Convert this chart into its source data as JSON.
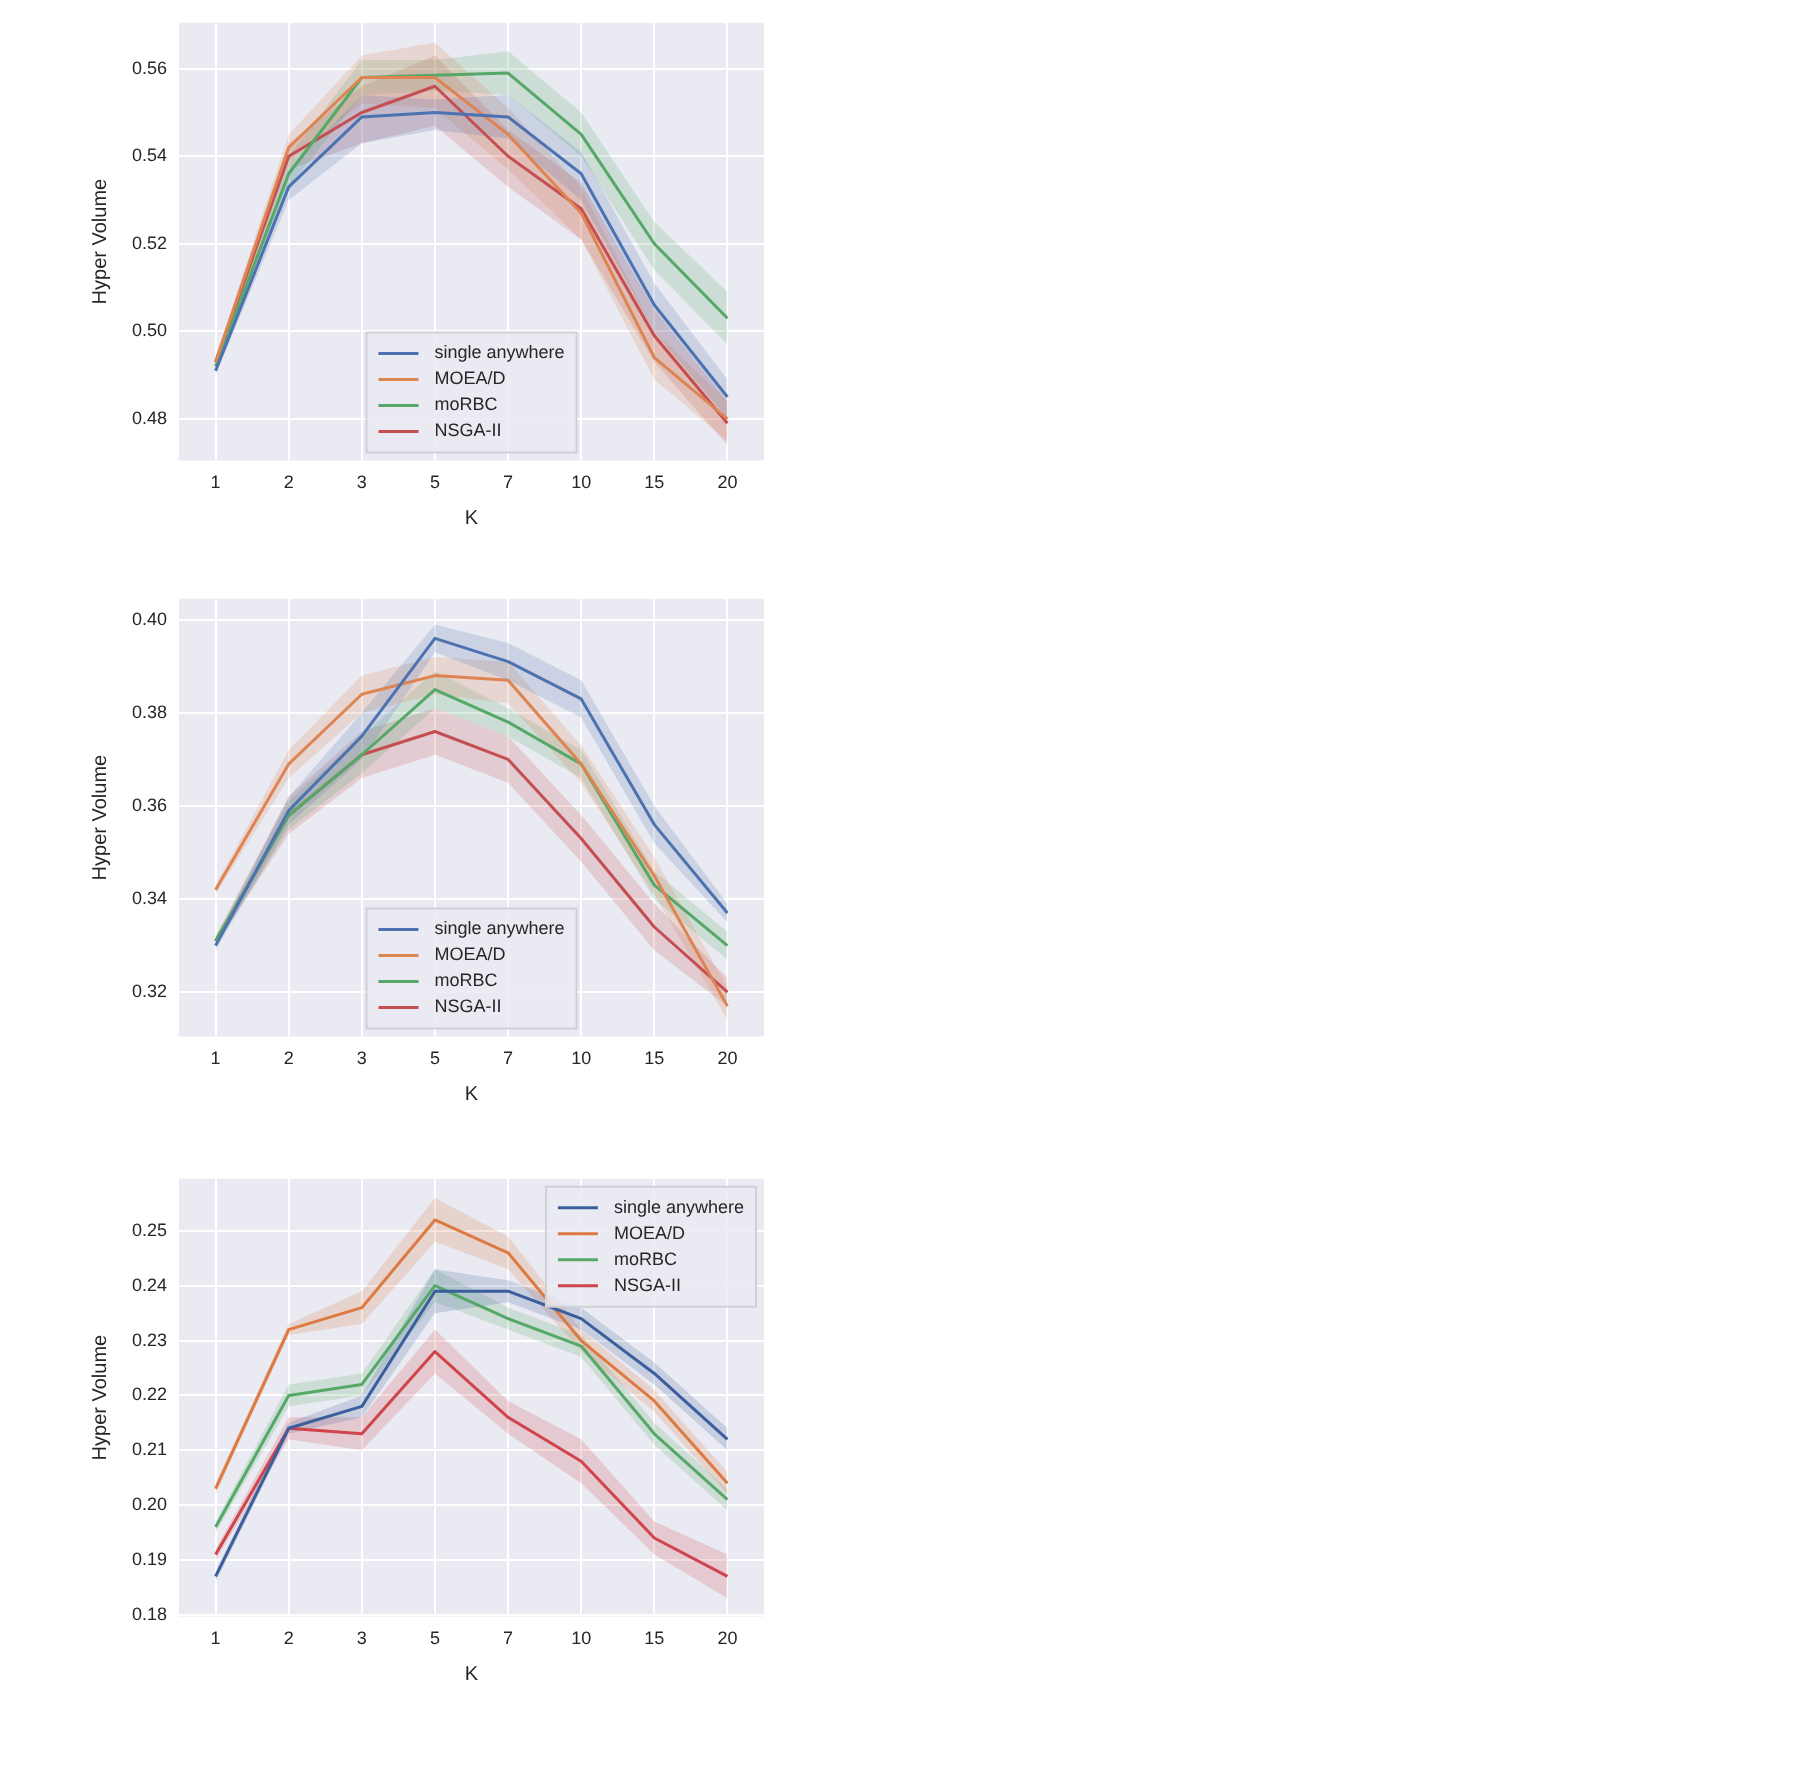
{
  "chart_data": [
    {
      "type": "line",
      "xlabel": "K",
      "ylabel": "Hyper Volume",
      "categories": [
        "1",
        "2",
        "3",
        "5",
        "7",
        "10",
        "15",
        "20"
      ],
      "ylim": [
        0.4705,
        0.5705
      ],
      "yticks": [
        0.48,
        {
          "value": 0.5,
          "label": "0.50"
        },
        0.52,
        0.54,
        0.56
      ],
      "grid": true,
      "legend": "bottom",
      "marker": "none",
      "series": [
        {
          "name": "single anywhere",
          "color": "#4c72b0",
          "values": [
            0.491,
            0.533,
            0.549,
            0.55,
            0.549,
            0.536,
            0.506,
            0.485
          ],
          "lower": [
            0.49,
            0.53,
            0.543,
            0.546,
            0.544,
            0.53,
            0.5,
            0.48
          ],
          "upper": [
            0.493,
            0.537,
            0.554,
            0.553,
            0.554,
            0.541,
            0.511,
            0.489
          ]
        },
        {
          "name": "MOEA/D",
          "color": "#dd8452",
          "values": [
            0.493,
            0.542,
            0.558,
            0.558,
            0.545,
            0.527,
            0.494,
            0.48
          ],
          "lower": [
            0.492,
            0.539,
            0.552,
            0.551,
            0.537,
            0.521,
            0.489,
            0.475
          ],
          "upper": [
            0.494,
            0.545,
            0.563,
            0.566,
            0.551,
            0.533,
            0.5,
            0.484
          ]
        },
        {
          "name": "moRBC",
          "color": "#55a868",
          "values": [
            0.492,
            0.536,
            0.558,
            0.5585,
            0.559,
            0.545,
            0.52,
            0.503
          ],
          "lower": [
            0.491,
            0.533,
            0.554,
            0.555,
            0.554,
            0.54,
            0.514,
            0.497
          ],
          "upper": [
            0.493,
            0.54,
            0.562,
            0.562,
            0.564,
            0.55,
            0.525,
            0.509
          ]
        },
        {
          "name": "NSGA-II",
          "color": "#c44e52",
          "values": [
            0.493,
            0.54,
            0.55,
            0.556,
            0.54,
            0.528,
            0.499,
            0.479
          ],
          "lower": [
            0.492,
            0.537,
            0.543,
            0.547,
            0.533,
            0.521,
            0.493,
            0.474
          ],
          "upper": [
            0.494,
            0.543,
            0.556,
            0.563,
            0.546,
            0.534,
            0.505,
            0.484
          ]
        }
      ]
    },
    {
      "type": "line",
      "xlabel": "K",
      "ylabel": "Hyper Volume",
      "categories": [
        "1",
        "2",
        "3",
        "5",
        "7",
        "10",
        "15",
        "20"
      ],
      "ylim": [
        0.3105,
        0.4045
      ],
      "yticks": [
        0.32,
        0.34,
        0.36,
        0.38,
        {
          "value": 0.4,
          "label": "0.40"
        }
      ],
      "grid": true,
      "legend": "bottom",
      "marker": "none",
      "series": [
        {
          "name": "single anywhere",
          "color": "#4c72b0",
          "values": [
            0.33,
            0.359,
            0.375,
            0.396,
            0.391,
            0.383,
            0.356,
            0.337
          ],
          "lower": [
            0.329,
            0.356,
            0.37,
            0.393,
            0.387,
            0.379,
            0.352,
            0.335
          ],
          "upper": [
            0.331,
            0.362,
            0.38,
            0.399,
            0.395,
            0.387,
            0.36,
            0.339
          ]
        },
        {
          "name": "MOEA/D",
          "color": "#dd8452",
          "values": [
            0.342,
            0.369,
            0.384,
            0.388,
            0.387,
            0.369,
            0.345,
            0.317
          ],
          "lower": [
            0.341,
            0.366,
            0.38,
            0.384,
            0.382,
            0.365,
            0.341,
            0.314
          ],
          "upper": [
            0.343,
            0.372,
            0.388,
            0.392,
            0.391,
            0.373,
            0.349,
            0.321
          ]
        },
        {
          "name": "moRBC",
          "color": "#55a868",
          "values": [
            0.331,
            0.358,
            0.371,
            0.385,
            0.378,
            0.369,
            0.343,
            0.33
          ],
          "lower": [
            0.33,
            0.355,
            0.367,
            0.381,
            0.375,
            0.366,
            0.34,
            0.327
          ],
          "upper": [
            0.332,
            0.361,
            0.375,
            0.389,
            0.381,
            0.372,
            0.346,
            0.333
          ]
        },
        {
          "name": "NSGA-II",
          "color": "#c44e52",
          "values": [
            0.331,
            0.358,
            0.371,
            0.376,
            0.37,
            0.353,
            0.334,
            0.32
          ],
          "lower": [
            0.33,
            0.354,
            0.366,
            0.371,
            0.365,
            0.348,
            0.329,
            0.317
          ],
          "upper": [
            0.332,
            0.362,
            0.376,
            0.381,
            0.375,
            0.358,
            0.339,
            0.323
          ]
        }
      ]
    },
    {
      "type": "line",
      "xlabel": "K",
      "ylabel": "Hyper Volume",
      "categories": [
        "1",
        "2",
        "3",
        "5",
        "7",
        "10",
        "15",
        "20"
      ],
      "ylim": [
        0.1797,
        0.2595
      ],
      "yticks": [
        0.18,
        0.19,
        {
          "value": 0.2,
          "label": "0.20"
        },
        0.21,
        0.22,
        0.23,
        0.24,
        0.25
      ],
      "grid": true,
      "legend": "top right",
      "marker": "none",
      "series": [
        {
          "name": "single anywhere",
          "color": "#3a5f9c",
          "values": [
            0.187,
            0.214,
            0.218,
            0.239,
            0.239,
            0.234,
            0.224,
            0.212
          ],
          "lower": [
            0.186,
            0.213,
            0.216,
            0.235,
            0.237,
            0.232,
            0.222,
            0.21
          ],
          "upper": [
            0.188,
            0.215,
            0.22,
            0.243,
            0.241,
            0.236,
            0.226,
            0.214
          ]
        },
        {
          "name": "MOEA/D",
          "color": "#dd7a42",
          "values": [
            0.203,
            0.232,
            0.236,
            0.252,
            0.246,
            0.23,
            0.219,
            0.204
          ],
          "lower": [
            0.202,
            0.231,
            0.233,
            0.248,
            0.243,
            0.228,
            0.217,
            0.202
          ],
          "upper": [
            0.204,
            0.233,
            0.239,
            0.256,
            0.249,
            0.232,
            0.221,
            0.206
          ]
        },
        {
          "name": "moRBC",
          "color": "#55a868",
          "values": [
            0.196,
            0.22,
            0.222,
            0.24,
            0.234,
            0.229,
            0.213,
            0.201
          ],
          "lower": [
            0.195,
            0.218,
            0.22,
            0.237,
            0.232,
            0.227,
            0.211,
            0.199
          ],
          "upper": [
            0.197,
            0.222,
            0.224,
            0.243,
            0.236,
            0.231,
            0.215,
            0.203
          ]
        },
        {
          "name": "NSGA-II",
          "color": "#d0454c",
          "values": [
            0.191,
            0.214,
            0.213,
            0.228,
            0.216,
            0.208,
            0.194,
            0.187
          ],
          "lower": [
            0.19,
            0.212,
            0.21,
            0.224,
            0.213,
            0.204,
            0.191,
            0.183
          ],
          "upper": [
            0.192,
            0.216,
            0.216,
            0.232,
            0.219,
            0.212,
            0.197,
            0.191
          ]
        }
      ]
    }
  ]
}
